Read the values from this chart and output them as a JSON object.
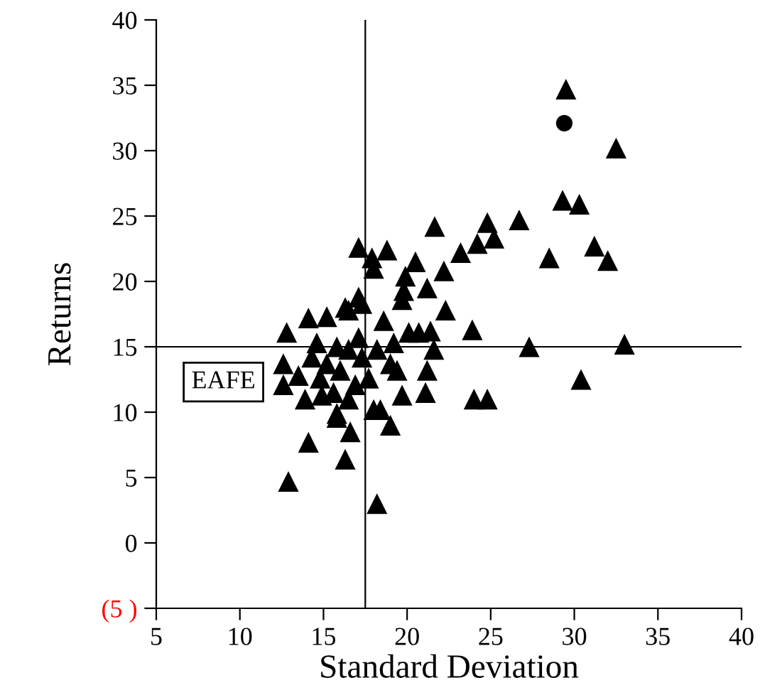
{
  "chart_data": {
    "type": "scatter",
    "xlabel": "Standard Deviation",
    "ylabel": "Returns",
    "xlim": [
      5,
      40
    ],
    "xticks": [
      5,
      10,
      15,
      20,
      25,
      30,
      35,
      40
    ],
    "ylim": [
      -5,
      40
    ],
    "yticks": [
      {
        "value": -5,
        "label": "(5 )"
      },
      0,
      5,
      10,
      15,
      20,
      25,
      30,
      35,
      40
    ],
    "grid": false,
    "legend": false,
    "ref_lines": [
      {
        "axis": "x",
        "value": 17.5,
        "color": "#000000"
      },
      {
        "axis": "y",
        "value": 15,
        "label": "EAFE",
        "color": "#000000"
      }
    ],
    "series": [
      {
        "color": "#000000",
        "marker": "triangle",
        "x": [
          21.65,
          24.8,
          26.7,
          24.2,
          25.2,
          23.2,
          22.2,
          21.2,
          22.3,
          23.9,
          27.3,
          24.0,
          24.8,
          21.1,
          21.2,
          21.6,
          21.4,
          20.7,
          20.1,
          20.5,
          19.9,
          19.7,
          19.8,
          18.8,
          18.0,
          17.1,
          17.9,
          19.7,
          19.0,
          18.2,
          16.3,
          16.6,
          18.4,
          18.0,
          17.3,
          16.5,
          18.6,
          19.2,
          19.4,
          15.8,
          12.9,
          14.1,
          12.8,
          12.6,
          14.1,
          15.2,
          16.3,
          17.1,
          17.1,
          14.6,
          15.8,
          14.9,
          15.8,
          13.5,
          29.5,
          32.5,
          29.3,
          30.3,
          28.5,
          31.2,
          32.0,
          33.0,
          30.4,
          15.2,
          16.0,
          14.8,
          16.5,
          15.6,
          16.9,
          14.3,
          17.7,
          17.3,
          13.9,
          16.5,
          18.2,
          19.0,
          12.6
        ],
        "values": [
          24.2,
          24.5,
          24.7,
          22.9,
          23.3,
          22.2,
          20.8,
          19.5,
          17.8,
          16.3,
          15.0,
          11.0,
          11.0,
          11.5,
          13.2,
          14.8,
          16.2,
          16.1,
          16.1,
          21.5,
          20.4,
          18.6,
          19.3,
          22.4,
          21.0,
          22.6,
          21.8,
          11.3,
          9.0,
          3.0,
          6.4,
          8.5,
          10.2,
          10.2,
          18.3,
          17.8,
          17.0,
          15.3,
          13.2,
          9.9,
          4.7,
          7.7,
          16.1,
          12.1,
          17.2,
          17.3,
          18.0,
          18.8,
          15.7,
          15.3,
          15.0,
          11.3,
          9.6,
          12.8,
          34.7,
          30.2,
          26.2,
          25.9,
          21.8,
          22.7,
          21.6,
          15.2,
          12.5,
          13.7,
          13.2,
          12.6,
          14.8,
          11.5,
          12.1,
          14.2,
          12.6,
          14.2,
          11.0,
          11.0,
          14.8,
          13.7,
          13.7
        ]
      },
      {
        "color": "#000000",
        "marker": "circle",
        "x": [
          29.4
        ],
        "values": [
          32.1
        ]
      }
    ]
  }
}
